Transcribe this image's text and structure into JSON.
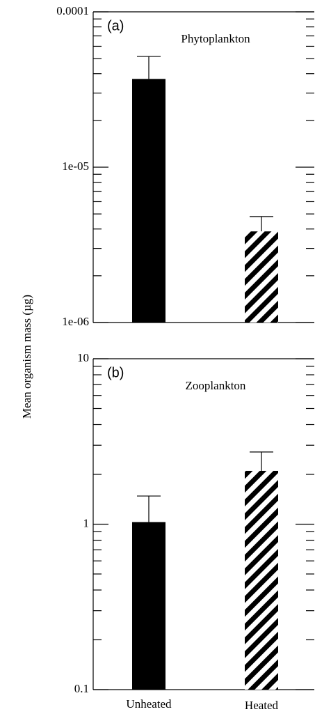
{
  "chart_data": [
    {
      "type": "bar",
      "panel_label": "(a)",
      "title": "Phytoplankton",
      "ylabel": "Mean organism mass (µg)",
      "categories": [
        null,
        null
      ],
      "values": [
        3.7e-05,
        3.86e-06
      ],
      "errors": [
        1.46e-05,
        9.5e-07
      ],
      "color": "#000000",
      "patterns": [
        "solid",
        "hatch"
      ],
      "log_y": true,
      "ylim": [
        1e-06,
        0.0001
      ],
      "yticks": [
        {
          "value": 1e-06,
          "label": "1e-06"
        },
        {
          "value": 1e-05,
          "label": "1e-05"
        },
        {
          "value": 0.0001,
          "label": "0.0001"
        }
      ],
      "yminorticks": [
        2e-06,
        3e-06,
        4e-06,
        5e-06,
        6e-06,
        7e-06,
        8e-06,
        9e-06,
        2e-05,
        3e-05,
        4e-05,
        5e-05,
        6e-05,
        7e-05,
        8e-05,
        9e-05
      ]
    },
    {
      "type": "bar",
      "panel_label": "(b)",
      "title": "Zooplankton",
      "categories": [
        "Unheated",
        "Heated"
      ],
      "values": [
        1.03,
        2.1
      ],
      "errors": [
        0.45,
        0.63
      ],
      "color": "#000000",
      "patterns": [
        "solid",
        "hatch"
      ],
      "log_y": true,
      "ylim": [
        0.1,
        10
      ],
      "yticks": [
        0.1,
        1,
        10
      ],
      "yminorticks": [
        0.2,
        0.3,
        0.4,
        0.5,
        0.6,
        0.7,
        0.8,
        0.9,
        2,
        3,
        4,
        5,
        6,
        7,
        8,
        9
      ]
    }
  ]
}
